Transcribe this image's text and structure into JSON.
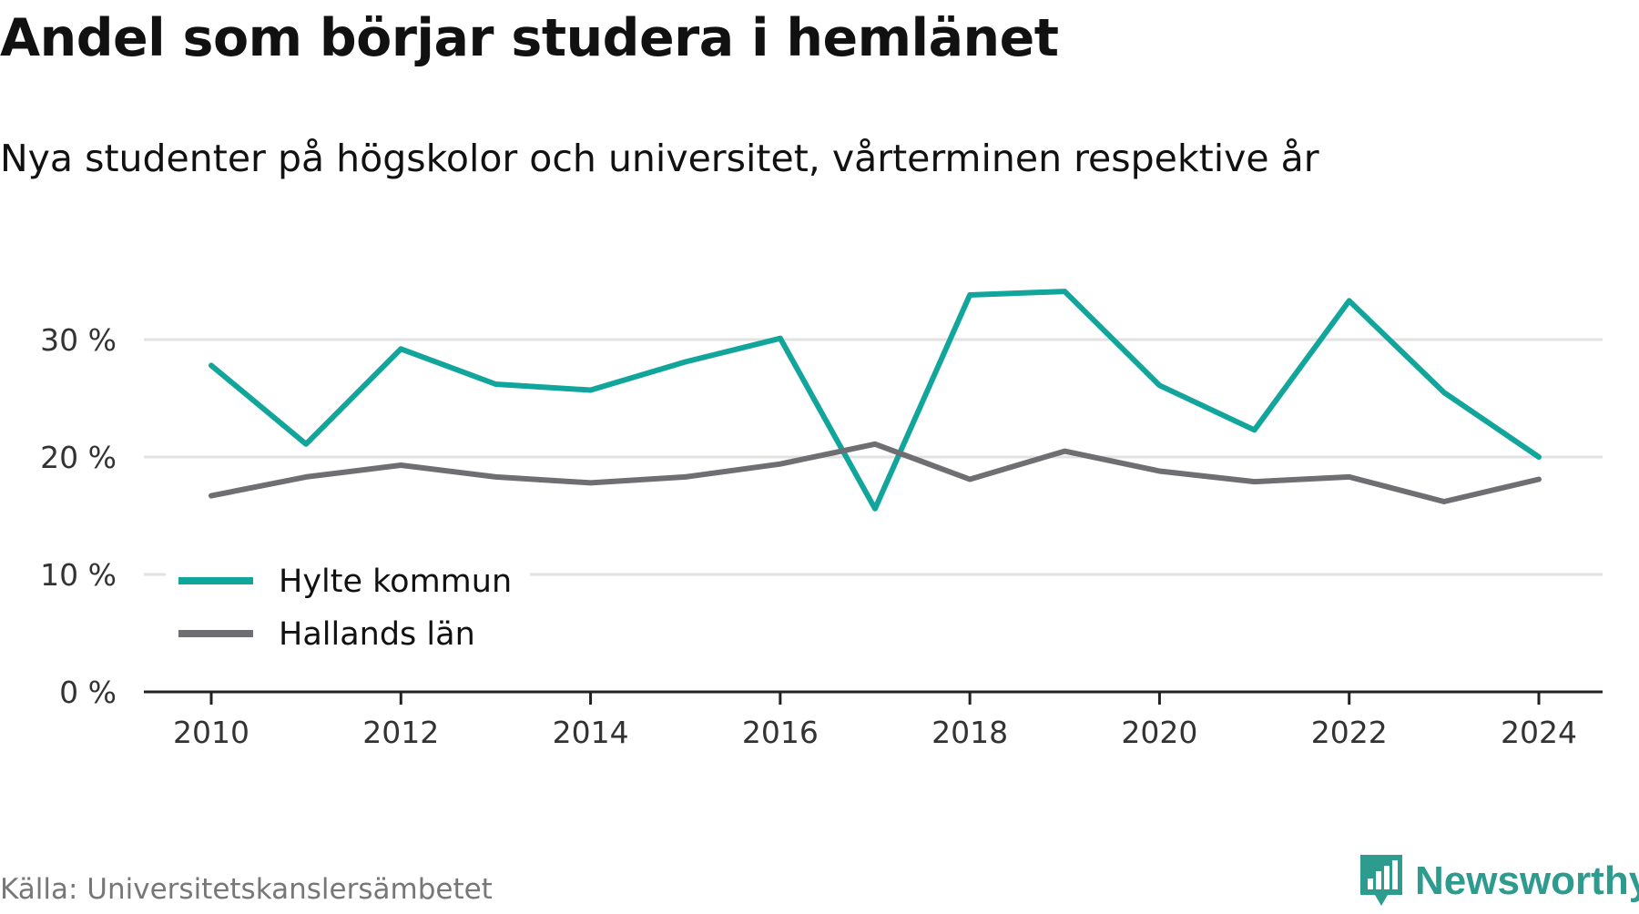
{
  "chart_data": {
    "type": "line",
    "title": "Andel som börjar studera i hemlänet",
    "subtitle": "Nya studenter på högskolor och universitet, vårterminen respektive år",
    "x": [
      2010,
      2011,
      2012,
      2013,
      2014,
      2015,
      2016,
      2017,
      2018,
      2019,
      2020,
      2021,
      2022,
      2023,
      2024
    ],
    "xticks": [
      "2010",
      "2012",
      "2014",
      "2016",
      "2018",
      "2020",
      "2022",
      "2024"
    ],
    "yticks": [
      "0 %",
      "10 %",
      "20 %",
      "30 %"
    ],
    "ylim": [
      0,
      40
    ],
    "grid": true,
    "legend_position": "bottom-left",
    "series": [
      {
        "name": "Hylte kommun",
        "color": "#12a59b",
        "values": [
          27.8,
          21.1,
          29.2,
          26.2,
          25.7,
          28.1,
          30.1,
          15.6,
          33.8,
          34.1,
          26.1,
          22.3,
          33.3,
          25.5,
          20.0
        ]
      },
      {
        "name": "Hallands län",
        "color": "#6e6e73",
        "values": [
          16.7,
          18.3,
          19.3,
          18.3,
          17.8,
          18.3,
          19.4,
          21.1,
          18.1,
          20.5,
          18.8,
          17.9,
          18.3,
          16.2,
          18.1
        ]
      }
    ]
  },
  "source": "Källa: Universitetskanslersämbetet",
  "brand": "Newsworthy",
  "brand_color": "#2e9b8f",
  "brand_icon": "bar-chart-speech-icon"
}
